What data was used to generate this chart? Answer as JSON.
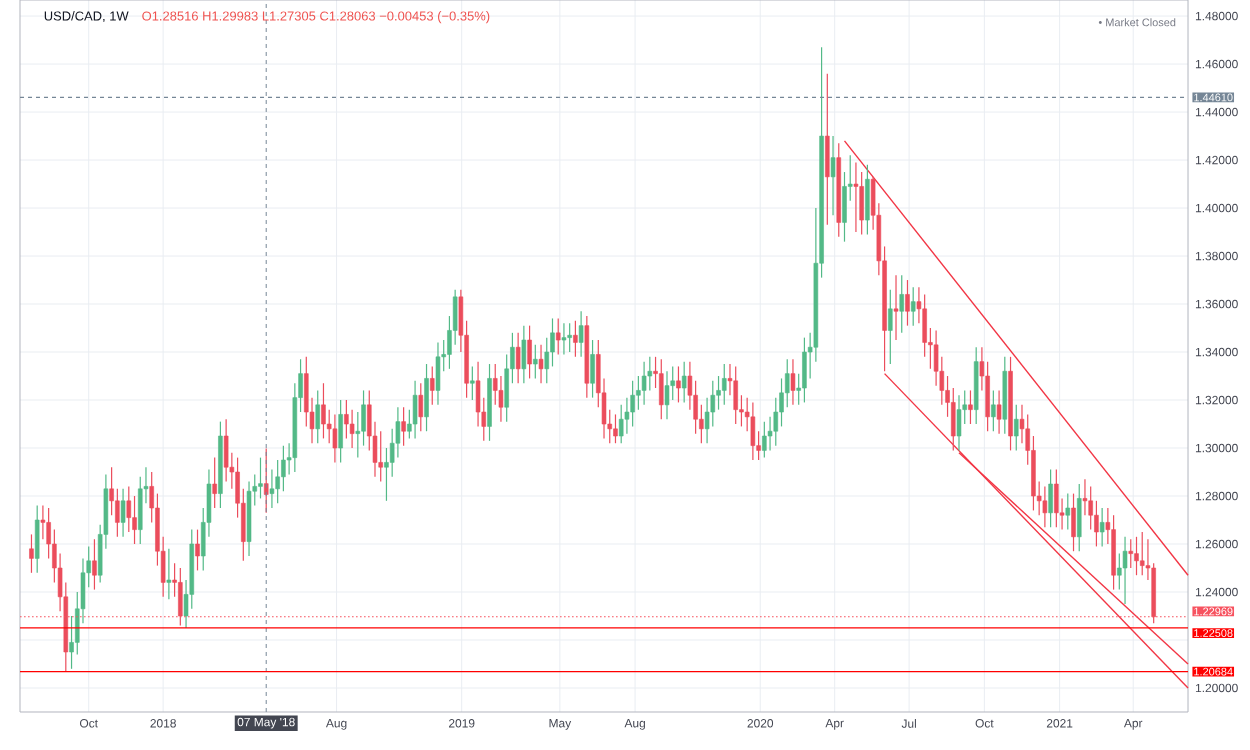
{
  "chart_data": {
    "type": "candlestick",
    "title": "USD/CAD, 1W",
    "subtitle": "O1.28516 H1.29983 L1.27305 C1.28063 −0.00453 (−0.35%)",
    "annotations": [
      "• Market Closed"
    ],
    "colors": [
      "#eb4d5c",
      "#53b987",
      "#eb4d5c",
      "#eb4d5c",
      "#eb4d5c",
      "#eb4d5c",
      "#eb4d5c",
      "#53b987",
      "#53b987",
      "#53b987",
      "#53b987",
      "#eb4d5c",
      "#53b987",
      "#53b987",
      "#eb4d5c",
      "#eb4d5c",
      "#53b987",
      "#eb4d5c",
      "#eb4d5c",
      "#53b987",
      "#53b987",
      "#eb4d5c",
      "#eb4d5c",
      "#eb4d5c",
      "#53b987",
      "#eb4d5c",
      "#eb4d5c",
      "#53b987",
      "#53b987",
      "#eb4d5c",
      "#53b987",
      "#53b987",
      "#eb4d5c",
      "#53b987",
      "#eb4d5c",
      "#eb4d5c",
      "#eb4d5c",
      "#eb4d5c",
      "#53b987",
      "#53b987",
      "#53b987",
      "#eb4d5c",
      "#53b987",
      "#53b987",
      "#53b987",
      "#53b987",
      "#53b987",
      "#53b987",
      "#eb4d5c",
      "#eb4d5c",
      "#53b987",
      "#eb4d5c",
      "#eb4d5c",
      "#eb4d5c",
      "#53b987",
      "#eb4d5c",
      "#eb4d5c",
      "#53b987",
      "#53b987",
      "#eb4d5c",
      "#eb4d5c",
      "#eb4d5c",
      "#53b987",
      "#53b987",
      "#53b987",
      "#eb4d5c",
      "#53b987",
      "#53b987",
      "#eb4d5c",
      "#53b987",
      "#eb4d5c",
      "#53b987",
      "#53b987",
      "#53b987",
      "#53b987",
      "#eb4d5c",
      "#eb4d5c",
      "#53b987",
      "#eb4d5c",
      "#eb4d5c",
      "#53b987",
      "#eb4d5c",
      "#eb4d5c",
      "#53b987",
      "#53b987",
      "#eb4d5c",
      "#53b987",
      "#eb4d5c",
      "#53b987",
      "#eb4d5c",
      "#53b987",
      "#53b987",
      "#eb4d5c",
      "#53b987",
      "#53b987",
      "#eb4d5c",
      "#53b987",
      "#eb4d5c",
      "#53b987",
      "#eb4d5c",
      "#eb4d5c",
      "#eb4d5c",
      "#eb4d5c",
      "#53b987",
      "#53b987",
      "#53b987",
      "#53b987",
      "#53b987",
      "#53b987",
      "#eb4d5c",
      "#eb4d5c",
      "#53b987",
      "#53b987",
      "#eb4d5c",
      "#53b987",
      "#eb4d5c",
      "#eb4d5c",
      "#eb4d5c",
      "#53b987",
      "#53b987",
      "#53b987",
      "#53b987",
      "#eb4d5c",
      "#eb4d5c",
      "#eb4d5c",
      "#eb4d5c",
      "#eb4d5c",
      "#eb4d5c",
      "#53b987",
      "#53b987",
      "#53b987",
      "#53b987",
      "#53b987",
      "#eb4d5c",
      "#53b987",
      "#53b987",
      "#53b987",
      "#53b987",
      "#53b987",
      "#eb4d5c",
      "#53b987",
      "#eb4d5c",
      "#53b987",
      "#53b987",
      "#eb4d5c",
      "#eb4d5c",
      "#53b987",
      "#eb4d5c",
      "#eb4d5c",
      "#eb4d5c",
      "#53b987",
      "#eb4d5c",
      "#53b987",
      "#eb4d5c",
      "#53b987",
      "#eb4d5c",
      "#eb4d5c",
      "#eb4d5c",
      "#eb4d5c",
      "#eb4d5c",
      "#eb4d5c",
      "#eb4d5c",
      "#53b987",
      "#53b987",
      "#eb4d5c",
      "#53b987",
      "#eb4d5c",
      "#eb4d5c",
      "#53b987",
      "#eb4d5c",
      "#53b987",
      "#eb4d5c",
      "#53b987",
      "#eb4d5c",
      "#eb4d5c",
      "#eb4d5c",
      "#eb4d5c",
      "#eb4d5c",
      "#53b987",
      "#eb4d5c",
      "#eb4d5c",
      "#53b987",
      "#eb4d5c",
      "#53b987",
      "#eb4d5c",
      "#eb4d5c",
      "#eb4d5c",
      "#53b987",
      "#eb4d5c",
      "#eb4d5c",
      "#53b987",
      "#53b987",
      "#eb4d5c",
      "#eb4d5c",
      "#eb4d5c",
      "#eb4d5c",
      "#eb4d5c"
    ],
    "x": [
      "2017-07-24",
      "2017-07-31",
      "2017-08-07",
      "2017-08-14",
      "2017-08-21",
      "2017-08-28",
      "2017-09-04",
      "2017-09-11",
      "2017-09-18",
      "2017-09-25",
      "2017-10-02",
      "2017-10-09",
      "2017-10-16",
      "2017-10-23",
      "2017-10-30",
      "2017-11-06",
      "2017-11-13",
      "2017-11-20",
      "2017-11-27",
      "2017-12-04",
      "2017-12-11",
      "2017-12-18",
      "2017-12-25",
      "2018-01-01",
      "2018-01-08",
      "2018-01-15",
      "2018-01-22",
      "2018-01-29",
      "2018-02-05",
      "2018-02-12",
      "2018-02-19",
      "2018-02-26",
      "2018-03-05",
      "2018-03-12",
      "2018-03-19",
      "2018-03-26",
      "2018-04-02",
      "2018-04-09",
      "2018-04-16",
      "2018-04-23",
      "2018-04-30",
      "2018-05-07",
      "2018-05-14",
      "2018-05-21",
      "2018-05-28",
      "2018-06-04",
      "2018-06-11",
      "2018-06-18",
      "2018-06-25",
      "2018-07-02",
      "2018-07-09",
      "2018-07-16",
      "2018-07-23",
      "2018-07-30",
      "2018-08-06",
      "2018-08-13",
      "2018-08-20",
      "2018-08-27",
      "2018-09-03",
      "2018-09-10",
      "2018-09-17",
      "2018-09-24",
      "2018-10-01",
      "2018-10-08",
      "2018-10-15",
      "2018-10-22",
      "2018-10-29",
      "2018-11-05",
      "2018-11-12",
      "2018-11-19",
      "2018-11-26",
      "2018-12-03",
      "2018-12-10",
      "2018-12-17",
      "2018-12-24",
      "2018-12-31",
      "2019-01-07",
      "2019-01-14",
      "2019-01-21",
      "2019-01-28",
      "2019-02-04",
      "2019-02-11",
      "2019-02-18",
      "2019-02-25",
      "2019-03-04",
      "2019-03-11",
      "2019-03-18",
      "2019-03-25",
      "2019-04-01",
      "2019-04-08",
      "2019-04-15",
      "2019-04-22",
      "2019-04-29",
      "2019-05-06",
      "2019-05-13",
      "2019-05-20",
      "2019-05-27",
      "2019-06-03",
      "2019-06-10",
      "2019-06-17",
      "2019-06-24",
      "2019-07-01",
      "2019-07-08",
      "2019-07-15",
      "2019-07-22",
      "2019-07-29",
      "2019-08-05",
      "2019-08-12",
      "2019-08-19",
      "2019-08-26",
      "2019-09-02",
      "2019-09-09",
      "2019-09-16",
      "2019-09-23",
      "2019-09-30",
      "2019-10-07",
      "2019-10-14",
      "2019-10-21",
      "2019-10-28",
      "2019-11-04",
      "2019-11-11",
      "2019-11-18",
      "2019-11-25",
      "2019-12-02",
      "2019-12-09",
      "2019-12-16",
      "2019-12-23",
      "2019-12-30",
      "2020-01-06",
      "2020-01-13",
      "2020-01-20",
      "2020-01-27",
      "2020-02-03",
      "2020-02-10",
      "2020-02-17",
      "2020-02-24",
      "2020-03-02",
      "2020-03-09",
      "2020-03-16",
      "2020-03-23",
      "2020-03-30",
      "2020-04-06",
      "2020-04-13",
      "2020-04-20",
      "2020-04-27",
      "2020-05-04",
      "2020-05-11",
      "2020-05-18",
      "2020-05-25",
      "2020-06-01",
      "2020-06-08",
      "2020-06-15",
      "2020-06-22",
      "2020-06-29",
      "2020-07-06",
      "2020-07-13",
      "2020-07-20",
      "2020-07-27",
      "2020-08-03",
      "2020-08-10",
      "2020-08-17",
      "2020-08-24",
      "2020-08-31",
      "2020-09-07",
      "2020-09-14",
      "2020-09-21",
      "2020-09-28",
      "2020-10-05",
      "2020-10-12",
      "2020-10-19",
      "2020-10-26",
      "2020-11-02",
      "2020-11-09",
      "2020-11-16",
      "2020-11-23",
      "2020-11-30",
      "2020-12-07",
      "2020-12-14",
      "2020-12-21",
      "2020-12-28",
      "2021-01-04",
      "2021-01-11",
      "2021-01-18",
      "2021-01-25",
      "2021-02-01",
      "2021-02-08",
      "2021-02-15",
      "2021-02-22",
      "2021-03-01",
      "2021-03-08",
      "2021-03-15",
      "2021-03-22",
      "2021-03-29",
      "2021-04-05",
      "2021-04-12",
      "2021-04-19",
      "2021-04-26"
    ],
    "ohlc": [
      [
        1.258,
        1.264,
        1.248,
        1.254
      ],
      [
        1.254,
        1.276,
        1.248,
        1.27
      ],
      [
        1.27,
        1.276,
        1.262,
        1.269
      ],
      [
        1.269,
        1.275,
        1.254,
        1.26
      ],
      [
        1.26,
        1.266,
        1.244,
        1.25
      ],
      [
        1.25,
        1.256,
        1.232,
        1.238
      ],
      [
        1.238,
        1.244,
        1.207,
        1.215
      ],
      [
        1.215,
        1.23,
        1.208,
        1.219
      ],
      [
        1.219,
        1.24,
        1.214,
        1.233
      ],
      [
        1.233,
        1.254,
        1.227,
        1.248
      ],
      [
        1.248,
        1.259,
        1.242,
        1.253
      ],
      [
        1.253,
        1.262,
        1.241,
        1.247
      ],
      [
        1.247,
        1.268,
        1.244,
        1.264
      ],
      [
        1.264,
        1.289,
        1.258,
        1.283
      ],
      [
        1.283,
        1.292,
        1.272,
        1.278
      ],
      [
        1.278,
        1.283,
        1.263,
        1.269
      ],
      [
        1.269,
        1.283,
        1.263,
        1.278
      ],
      [
        1.278,
        1.284,
        1.265,
        1.271
      ],
      [
        1.271,
        1.28,
        1.26,
        1.266
      ],
      [
        1.266,
        1.288,
        1.26,
        1.283
      ],
      [
        1.283,
        1.292,
        1.277,
        1.284
      ],
      [
        1.284,
        1.29,
        1.269,
        1.275
      ],
      [
        1.275,
        1.281,
        1.251,
        1.257
      ],
      [
        1.257,
        1.263,
        1.238,
        1.244
      ],
      [
        1.244,
        1.258,
        1.237,
        1.245
      ],
      [
        1.245,
        1.252,
        1.238,
        1.244
      ],
      [
        1.244,
        1.25,
        1.226,
        1.23
      ],
      [
        1.23,
        1.245,
        1.225,
        1.239
      ],
      [
        1.239,
        1.266,
        1.233,
        1.26
      ],
      [
        1.26,
        1.266,
        1.249,
        1.255
      ],
      [
        1.255,
        1.275,
        1.249,
        1.269
      ],
      [
        1.269,
        1.291,
        1.263,
        1.285
      ],
      [
        1.285,
        1.296,
        1.275,
        1.281
      ],
      [
        1.281,
        1.311,
        1.275,
        1.305
      ],
      [
        1.305,
        1.312,
        1.286,
        1.292
      ],
      [
        1.292,
        1.298,
        1.283,
        1.29
      ],
      [
        1.29,
        1.296,
        1.271,
        1.277
      ],
      [
        1.277,
        1.283,
        1.253,
        1.261
      ],
      [
        1.261,
        1.286,
        1.255,
        1.282
      ],
      [
        1.282,
        1.289,
        1.276,
        1.284
      ],
      [
        1.284,
        1.296,
        1.279,
        1.28516
      ],
      [
        1.28516,
        1.29983,
        1.27305,
        1.28063
      ],
      [
        1.281,
        1.291,
        1.275,
        1.283
      ],
      [
        1.283,
        1.295,
        1.277,
        1.288
      ],
      [
        1.288,
        1.301,
        1.282,
        1.295
      ],
      [
        1.295,
        1.302,
        1.289,
        1.296
      ],
      [
        1.296,
        1.327,
        1.29,
        1.321
      ],
      [
        1.321,
        1.337,
        1.315,
        1.331
      ],
      [
        1.331,
        1.338,
        1.309,
        1.315
      ],
      [
        1.315,
        1.321,
        1.302,
        1.308
      ],
      [
        1.308,
        1.324,
        1.302,
        1.318
      ],
      [
        1.318,
        1.327,
        1.304,
        1.31
      ],
      [
        1.31,
        1.316,
        1.302,
        1.308
      ],
      [
        1.308,
        1.314,
        1.294,
        1.3
      ],
      [
        1.3,
        1.32,
        1.294,
        1.314
      ],
      [
        1.314,
        1.32,
        1.304,
        1.31
      ],
      [
        1.31,
        1.316,
        1.3,
        1.306
      ],
      [
        1.306,
        1.315,
        1.296,
        1.307
      ],
      [
        1.307,
        1.324,
        1.301,
        1.318
      ],
      [
        1.318,
        1.324,
        1.299,
        1.305
      ],
      [
        1.305,
        1.311,
        1.288,
        1.294
      ],
      [
        1.294,
        1.307,
        1.286,
        1.292
      ],
      [
        1.292,
        1.3,
        1.278,
        1.294
      ],
      [
        1.294,
        1.308,
        1.288,
        1.302
      ],
      [
        1.302,
        1.317,
        1.296,
        1.311
      ],
      [
        1.311,
        1.317,
        1.301,
        1.307
      ],
      [
        1.307,
        1.316,
        1.304,
        1.31
      ],
      [
        1.31,
        1.328,
        1.304,
        1.322
      ],
      [
        1.322,
        1.327,
        1.307,
        1.313
      ],
      [
        1.313,
        1.335,
        1.307,
        1.329
      ],
      [
        1.329,
        1.334,
        1.318,
        1.324
      ],
      [
        1.324,
        1.344,
        1.318,
        1.338
      ],
      [
        1.338,
        1.345,
        1.332,
        1.339
      ],
      [
        1.339,
        1.355,
        1.333,
        1.349
      ],
      [
        1.349,
        1.366,
        1.343,
        1.363
      ],
      [
        1.363,
        1.366,
        1.34,
        1.347
      ],
      [
        1.347,
        1.353,
        1.321,
        1.327
      ],
      [
        1.327,
        1.334,
        1.32,
        1.328
      ],
      [
        1.328,
        1.336,
        1.309,
        1.315
      ],
      [
        1.315,
        1.321,
        1.303,
        1.309
      ],
      [
        1.309,
        1.335,
        1.303,
        1.329
      ],
      [
        1.329,
        1.335,
        1.318,
        1.324
      ],
      [
        1.324,
        1.33,
        1.311,
        1.317
      ],
      [
        1.317,
        1.339,
        1.311,
        1.333
      ],
      [
        1.333,
        1.348,
        1.327,
        1.342
      ],
      [
        1.342,
        1.348,
        1.327,
        1.333
      ],
      [
        1.333,
        1.351,
        1.327,
        1.345
      ],
      [
        1.345,
        1.351,
        1.329,
        1.335
      ],
      [
        1.335,
        1.343,
        1.329,
        1.337
      ],
      [
        1.337,
        1.343,
        1.327,
        1.333
      ],
      [
        1.333,
        1.346,
        1.327,
        1.34
      ],
      [
        1.34,
        1.354,
        1.334,
        1.348
      ],
      [
        1.348,
        1.354,
        1.339,
        1.345
      ],
      [
        1.345,
        1.352,
        1.339,
        1.346
      ],
      [
        1.346,
        1.352,
        1.34,
        1.347
      ],
      [
        1.347,
        1.353,
        1.338,
        1.344
      ],
      [
        1.344,
        1.357,
        1.338,
        1.351
      ],
      [
        1.351,
        1.355,
        1.321,
        1.327
      ],
      [
        1.327,
        1.345,
        1.321,
        1.339
      ],
      [
        1.339,
        1.345,
        1.317,
        1.323
      ],
      [
        1.323,
        1.329,
        1.304,
        1.31
      ],
      [
        1.31,
        1.316,
        1.302,
        1.308
      ],
      [
        1.308,
        1.314,
        1.302,
        1.305
      ],
      [
        1.305,
        1.318,
        1.302,
        1.312
      ],
      [
        1.312,
        1.321,
        1.306,
        1.315
      ],
      [
        1.315,
        1.328,
        1.309,
        1.322
      ],
      [
        1.322,
        1.33,
        1.316,
        1.324
      ],
      [
        1.324,
        1.336,
        1.318,
        1.33
      ],
      [
        1.33,
        1.338,
        1.324,
        1.332
      ],
      [
        1.332,
        1.338,
        1.325,
        1.331
      ],
      [
        1.331,
        1.337,
        1.312,
        1.318
      ],
      [
        1.318,
        1.332,
        1.312,
        1.326
      ],
      [
        1.326,
        1.334,
        1.32,
        1.328
      ],
      [
        1.328,
        1.334,
        1.319,
        1.325
      ],
      [
        1.325,
        1.336,
        1.319,
        1.33
      ],
      [
        1.33,
        1.336,
        1.316,
        1.322
      ],
      [
        1.322,
        1.328,
        1.306,
        1.312
      ],
      [
        1.312,
        1.318,
        1.302,
        1.308
      ],
      [
        1.308,
        1.321,
        1.302,
        1.315
      ],
      [
        1.315,
        1.328,
        1.309,
        1.322
      ],
      [
        1.322,
        1.33,
        1.316,
        1.324
      ],
      [
        1.324,
        1.335,
        1.318,
        1.329
      ],
      [
        1.329,
        1.335,
        1.322,
        1.328
      ],
      [
        1.328,
        1.334,
        1.31,
        1.316
      ],
      [
        1.316,
        1.322,
        1.309,
        1.315
      ],
      [
        1.315,
        1.321,
        1.307,
        1.313
      ],
      [
        1.313,
        1.319,
        1.295,
        1.301
      ],
      [
        1.301,
        1.307,
        1.295,
        1.299
      ],
      [
        1.299,
        1.311,
        1.296,
        1.305
      ],
      [
        1.305,
        1.313,
        1.299,
        1.307
      ],
      [
        1.307,
        1.321,
        1.301,
        1.315
      ],
      [
        1.315,
        1.329,
        1.309,
        1.323
      ],
      [
        1.323,
        1.337,
        1.317,
        1.331
      ],
      [
        1.331,
        1.337,
        1.318,
        1.324
      ],
      [
        1.324,
        1.331,
        1.318,
        1.325
      ],
      [
        1.325,
        1.346,
        1.319,
        1.34
      ],
      [
        1.34,
        1.348,
        1.329,
        1.342
      ],
      [
        1.342,
        1.4,
        1.336,
        1.377
      ],
      [
        1.377,
        1.467,
        1.371,
        1.43
      ],
      [
        1.43,
        1.456,
        1.393,
        1.413
      ],
      [
        1.413,
        1.43,
        1.397,
        1.421
      ],
      [
        1.421,
        1.427,
        1.388,
        1.394
      ],
      [
        1.394,
        1.415,
        1.386,
        1.409
      ],
      [
        1.409,
        1.422,
        1.403,
        1.41
      ],
      [
        1.41,
        1.419,
        1.39,
        1.409
      ],
      [
        1.409,
        1.415,
        1.389,
        1.395
      ],
      [
        1.395,
        1.418,
        1.389,
        1.412
      ],
      [
        1.412,
        1.413,
        1.391,
        1.397
      ],
      [
        1.397,
        1.402,
        1.372,
        1.378
      ],
      [
        1.378,
        1.384,
        1.332,
        1.349
      ],
      [
        1.349,
        1.366,
        1.335,
        1.358
      ],
      [
        1.358,
        1.372,
        1.345,
        1.357
      ],
      [
        1.357,
        1.372,
        1.348,
        1.364
      ],
      [
        1.364,
        1.37,
        1.351,
        1.357
      ],
      [
        1.357,
        1.367,
        1.351,
        1.361
      ],
      [
        1.361,
        1.367,
        1.352,
        1.358
      ],
      [
        1.358,
        1.364,
        1.338,
        1.344
      ],
      [
        1.344,
        1.35,
        1.333,
        1.343
      ],
      [
        1.343,
        1.349,
        1.326,
        1.332
      ],
      [
        1.332,
        1.338,
        1.318,
        1.324
      ],
      [
        1.324,
        1.33,
        1.313,
        1.319
      ],
      [
        1.319,
        1.325,
        1.299,
        1.305
      ],
      [
        1.305,
        1.322,
        1.299,
        1.316
      ],
      [
        1.316,
        1.324,
        1.31,
        1.318
      ],
      [
        1.318,
        1.324,
        1.31,
        1.316
      ],
      [
        1.316,
        1.342,
        1.31,
        1.336
      ],
      [
        1.336,
        1.342,
        1.324,
        1.33
      ],
      [
        1.33,
        1.336,
        1.307,
        1.313
      ],
      [
        1.313,
        1.324,
        1.307,
        1.318
      ],
      [
        1.318,
        1.324,
        1.306,
        1.312
      ],
      [
        1.312,
        1.338,
        1.306,
        1.332
      ],
      [
        1.332,
        1.338,
        1.299,
        1.305
      ],
      [
        1.305,
        1.318,
        1.299,
        1.312
      ],
      [
        1.312,
        1.318,
        1.302,
        1.308
      ],
      [
        1.308,
        1.314,
        1.293,
        1.299
      ],
      [
        1.299,
        1.305,
        1.274,
        1.28
      ],
      [
        1.28,
        1.286,
        1.272,
        1.278
      ],
      [
        1.278,
        1.284,
        1.267,
        1.273
      ],
      [
        1.273,
        1.291,
        1.267,
        1.285
      ],
      [
        1.285,
        1.291,
        1.267,
        1.273
      ],
      [
        1.273,
        1.279,
        1.266,
        1.272
      ],
      [
        1.272,
        1.281,
        1.266,
        1.275
      ],
      [
        1.275,
        1.281,
        1.257,
        1.263
      ],
      [
        1.263,
        1.285,
        1.257,
        1.279
      ],
      [
        1.279,
        1.287,
        1.272,
        1.278
      ],
      [
        1.278,
        1.284,
        1.266,
        1.272
      ],
      [
        1.272,
        1.278,
        1.259,
        1.265
      ],
      [
        1.265,
        1.275,
        1.259,
        1.269
      ],
      [
        1.269,
        1.275,
        1.26,
        1.266
      ],
      [
        1.266,
        1.272,
        1.241,
        1.247
      ],
      [
        1.247,
        1.256,
        1.241,
        1.25
      ],
      [
        1.25,
        1.263,
        1.235,
        1.257
      ],
      [
        1.257,
        1.262,
        1.25,
        1.256
      ],
      [
        1.256,
        1.263,
        1.247,
        1.253
      ],
      [
        1.253,
        1.265,
        1.247,
        1.251
      ],
      [
        1.251,
        1.262,
        1.245,
        1.25
      ],
      [
        1.25,
        1.252,
        1.227,
        1.22969
      ]
    ],
    "series": [
      {
        "type": "line",
        "color": "#f23645",
        "x": [
          "2020-04-13",
          "2021-06-07"
        ],
        "values": [
          1.428,
          1.247
        ]
      },
      {
        "type": "line",
        "color": "#f23645",
        "x": [
          "2020-06-01",
          "2021-06-07"
        ],
        "values": [
          1.331,
          1.2
        ]
      },
      {
        "type": "line",
        "color": "#f23645",
        "x": [
          "2020-08-31",
          "2021-06-07"
        ],
        "values": [
          1.298,
          1.21
        ]
      }
    ],
    "ref_lines": [
      {
        "axis": "x",
        "value": "2018-05-07",
        "label": "07 May '18",
        "color": "#758696",
        "line_style": "dashed"
      },
      {
        "axis": "y",
        "value": 1.4461,
        "label": "1.44610",
        "color": "#758696",
        "line_style": "dashed"
      },
      {
        "axis": "y",
        "value": 1.22969,
        "label": "1.22969",
        "color": "#f7525f",
        "line_style": "dotted"
      },
      {
        "axis": "y",
        "value": 1.22508,
        "label": "1.22508",
        "color": "#ff0000",
        "line_style": "solid"
      },
      {
        "axis": "y",
        "value": 1.20684,
        "label": "1.20684",
        "color": "#ff0000",
        "line_style": "solid"
      }
    ],
    "xlim": [
      "2017-07-10",
      "2021-06-07"
    ],
    "xticks": [
      {
        "value": "2017-10-02",
        "label": "Oct"
      },
      {
        "value": "2018-01-01",
        "label": "2018"
      },
      {
        "value": "2018-08-01",
        "label": "Aug"
      },
      {
        "value": "2019-01-01",
        "label": "2019"
      },
      {
        "value": "2019-05-01",
        "label": "May"
      },
      {
        "value": "2019-08-01",
        "label": "Aug"
      },
      {
        "value": "2020-01-01",
        "label": "2020"
      },
      {
        "value": "2020-04-01",
        "label": "Apr"
      },
      {
        "value": "2020-07-01",
        "label": "Jul"
      },
      {
        "value": "2020-10-01",
        "label": "Oct"
      },
      {
        "value": "2021-01-01",
        "label": "2021"
      },
      {
        "value": "2021-04-01",
        "label": "Apr"
      }
    ],
    "ylim": [
      1.19,
      1.4867
    ],
    "yticks": [
      {
        "value": 1.2,
        "label": "1.20000"
      },
      {
        "value": 1.22,
        "label": null
      },
      {
        "value": 1.24,
        "label": "1.24000"
      },
      {
        "value": 1.26,
        "label": "1.26000"
      },
      {
        "value": 1.28,
        "label": "1.28000"
      },
      {
        "value": 1.3,
        "label": "1.30000"
      },
      {
        "value": 1.32,
        "label": "1.32000"
      },
      {
        "value": 1.34,
        "label": "1.34000"
      },
      {
        "value": 1.36,
        "label": "1.36000"
      },
      {
        "value": 1.38,
        "label": "1.38000"
      },
      {
        "value": 1.4,
        "label": "1.40000"
      },
      {
        "value": 1.42,
        "label": "1.42000"
      },
      {
        "value": 1.44,
        "label": "1.44000"
      },
      {
        "value": 1.46,
        "label": "1.46000"
      },
      {
        "value": 1.48,
        "label": "1.48000"
      }
    ],
    "grid": true
  }
}
